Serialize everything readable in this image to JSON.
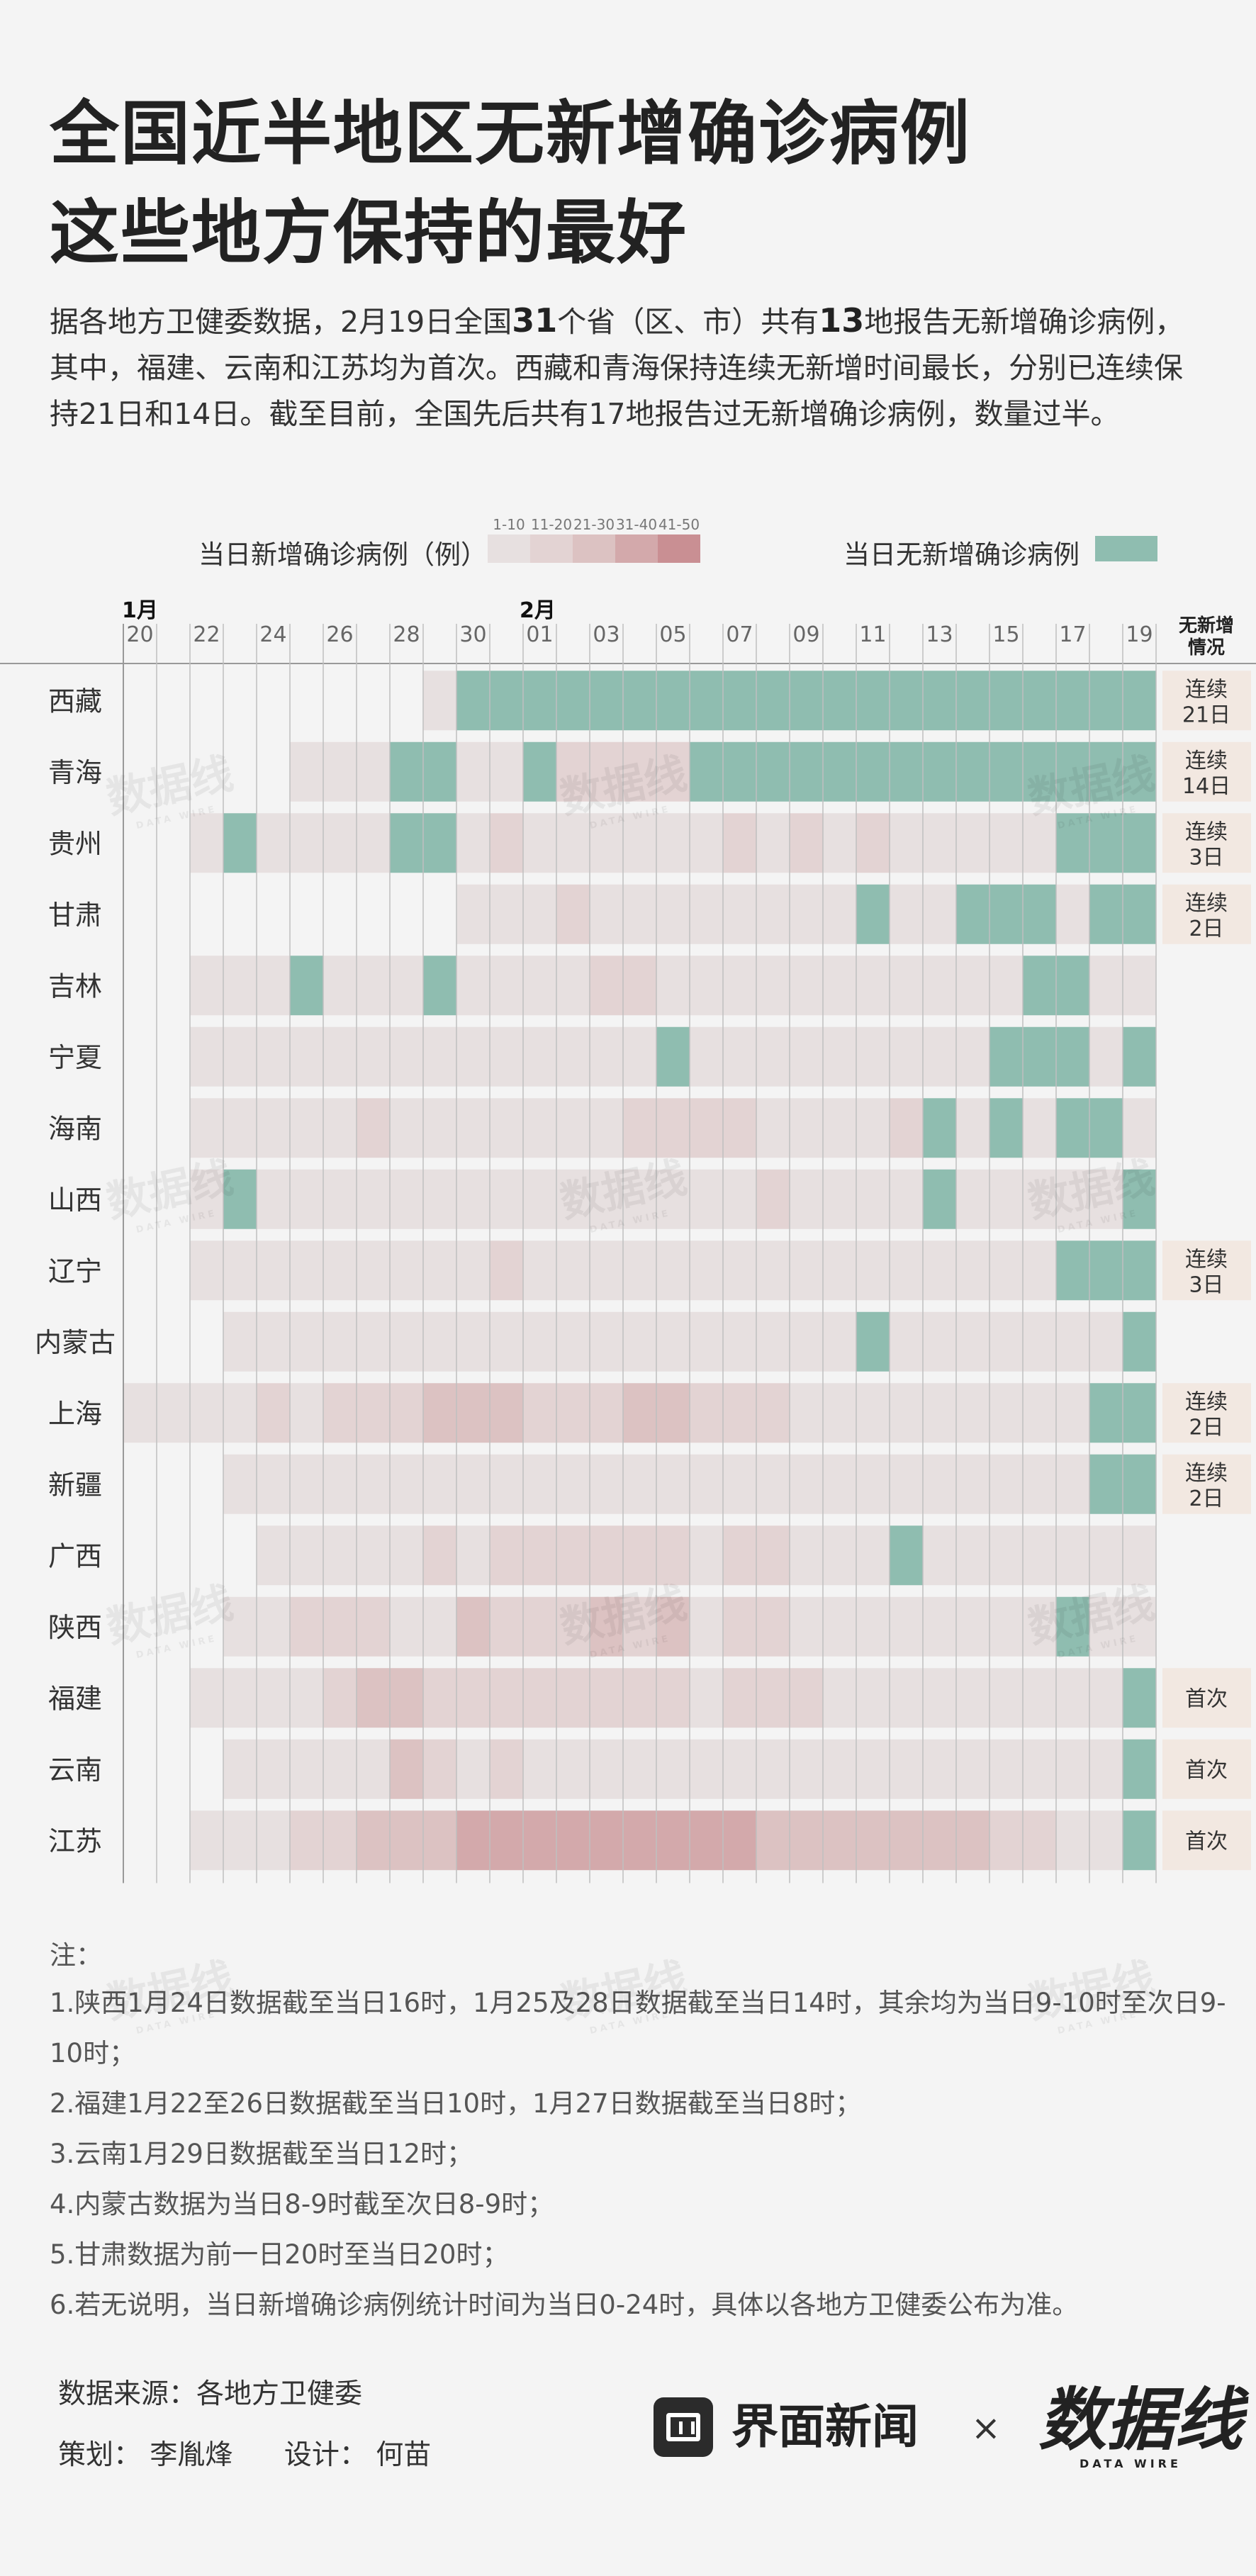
{
  "title_line1": "全国近半地区无新增确诊病例",
  "title_line2": "这些地方保持的最好",
  "intro": {
    "part1": "据各地方卫健委数据，2月19日全国",
    "num1": "31",
    "part2": "个省（区、市）共有",
    "num2": "13",
    "part3": "地报告无新增确诊病例，其中，福建、云南和江苏均为首次。西藏和青海保持连续无新增时间最长，分别已连续保持21日和14日。截至目前，全国先后共有17地报告过无新增确诊病例，数量过半。"
  },
  "legend": {
    "new_cases_label": "当日新增确诊病例（例）",
    "bins": [
      {
        "label": "1-10",
        "color": "#e7e0e0"
      },
      {
        "label": "11-20",
        "color": "#e3d3d3"
      },
      {
        "label": "21-30",
        "color": "#dcc2c2"
      },
      {
        "label": "31-40",
        "color": "#d3a9ab"
      },
      {
        "label": "41-50",
        "color": "#c98f93"
      }
    ],
    "no_new_label": "当日无新增确诊病例",
    "no_new_color": "#8fbdb0"
  },
  "chart_data": {
    "type": "heatmap",
    "month_labels": [
      "1月",
      "2月"
    ],
    "x_labels": [
      "20",
      "21",
      "22",
      "23",
      "24",
      "25",
      "26",
      "27",
      "28",
      "29",
      "30",
      "31",
      "01",
      "02",
      "03",
      "04",
      "05",
      "06",
      "07",
      "08",
      "09",
      "10",
      "11",
      "12",
      "13",
      "14",
      "15",
      "16",
      "17",
      "18",
      "19"
    ],
    "tick_labels_shown": [
      "20",
      "",
      "22",
      "",
      "24",
      "",
      "26",
      "",
      "28",
      "",
      "30",
      "",
      "01",
      "",
      "03",
      "",
      "05",
      "",
      "07",
      "",
      "09",
      "",
      "11",
      "",
      "13",
      "",
      "15",
      "",
      "17",
      "",
      "19"
    ],
    "status_header": [
      "无新增",
      "情况"
    ],
    "value_encoding": "0=无数据, 1=无新增确诊, 2=1-10, 3=11-20, 4=21-30, 5=31-40, 6=41-50",
    "rows": [
      {
        "province": "西藏",
        "status": [
          "连续",
          "21日"
        ],
        "values": [
          0,
          0,
          0,
          0,
          0,
          0,
          0,
          0,
          0,
          2,
          1,
          1,
          1,
          1,
          1,
          1,
          1,
          1,
          1,
          1,
          1,
          1,
          1,
          1,
          1,
          1,
          1,
          1,
          1,
          1,
          1
        ]
      },
      {
        "province": "青海",
        "status": [
          "连续",
          "14日"
        ],
        "values": [
          0,
          0,
          0,
          0,
          0,
          2,
          2,
          2,
          1,
          1,
          2,
          2,
          1,
          3,
          3,
          3,
          3,
          1,
          1,
          1,
          1,
          1,
          1,
          1,
          1,
          1,
          1,
          1,
          1,
          1,
          1
        ]
      },
      {
        "province": "贵州",
        "status": [
          "连续",
          "3日"
        ],
        "values": [
          0,
          0,
          2,
          1,
          2,
          2,
          2,
          2,
          1,
          1,
          2,
          3,
          2,
          2,
          2,
          2,
          2,
          2,
          3,
          2,
          3,
          2,
          3,
          2,
          2,
          2,
          2,
          2,
          1,
          1,
          1
        ]
      },
      {
        "province": "甘肃",
        "status": [
          "连续",
          "2日"
        ],
        "values": [
          0,
          0,
          0,
          0,
          0,
          0,
          0,
          0,
          0,
          0,
          2,
          2,
          2,
          3,
          2,
          2,
          2,
          2,
          2,
          2,
          2,
          2,
          1,
          2,
          2,
          1,
          1,
          1,
          2,
          1,
          1
        ]
      },
      {
        "province": "吉林",
        "status": [],
        "values": [
          0,
          0,
          2,
          2,
          2,
          1,
          2,
          2,
          2,
          1,
          2,
          2,
          2,
          2,
          3,
          3,
          2,
          2,
          2,
          2,
          2,
          2,
          2,
          2,
          2,
          2,
          2,
          1,
          1,
          2,
          2
        ]
      },
      {
        "province": "宁夏",
        "status": [],
        "values": [
          0,
          0,
          2,
          2,
          2,
          2,
          2,
          2,
          2,
          2,
          2,
          2,
          2,
          2,
          2,
          2,
          1,
          2,
          2,
          2,
          2,
          2,
          2,
          2,
          2,
          2,
          1,
          1,
          1,
          2,
          1
        ]
      },
      {
        "province": "海南",
        "status": [],
        "values": [
          0,
          0,
          2,
          2,
          2,
          2,
          2,
          3,
          2,
          2,
          2,
          2,
          2,
          2,
          2,
          3,
          3,
          3,
          3,
          2,
          2,
          2,
          2,
          3,
          1,
          2,
          1,
          2,
          1,
          1,
          2
        ]
      },
      {
        "province": "山西",
        "status": [],
        "values": [
          0,
          0,
          2,
          1,
          2,
          2,
          2,
          2,
          2,
          2,
          2,
          2,
          2,
          2,
          2,
          2,
          2,
          2,
          2,
          3,
          2,
          2,
          2,
          2,
          1,
          2,
          2,
          2,
          2,
          2,
          1
        ]
      },
      {
        "province": "辽宁",
        "status": [
          "连续",
          "3日"
        ],
        "values": [
          0,
          0,
          2,
          2,
          2,
          2,
          2,
          2,
          2,
          2,
          2,
          3,
          2,
          2,
          2,
          2,
          2,
          2,
          2,
          2,
          2,
          2,
          2,
          2,
          2,
          2,
          2,
          2,
          1,
          1,
          1
        ]
      },
      {
        "province": "内蒙古",
        "status": [],
        "values": [
          0,
          0,
          0,
          2,
          2,
          2,
          2,
          2,
          2,
          2,
          2,
          2,
          2,
          2,
          2,
          2,
          2,
          2,
          2,
          2,
          2,
          2,
          1,
          2,
          2,
          2,
          2,
          2,
          2,
          2,
          1
        ]
      },
      {
        "province": "上海",
        "status": [
          "连续",
          "2日"
        ],
        "values": [
          2,
          2,
          2,
          2,
          3,
          2,
          3,
          3,
          3,
          4,
          4,
          4,
          3,
          3,
          3,
          4,
          4,
          3,
          3,
          3,
          2,
          2,
          2,
          2,
          2,
          2,
          2,
          2,
          2,
          1,
          1
        ]
      },
      {
        "province": "新疆",
        "status": [
          "连续",
          "2日"
        ],
        "values": [
          0,
          0,
          0,
          2,
          2,
          2,
          2,
          2,
          2,
          2,
          2,
          2,
          2,
          2,
          2,
          2,
          2,
          2,
          2,
          2,
          2,
          2,
          2,
          2,
          2,
          2,
          2,
          2,
          2,
          1,
          1
        ]
      },
      {
        "province": "广西",
        "status": [],
        "values": [
          0,
          0,
          0,
          0,
          2,
          2,
          2,
          2,
          2,
          3,
          2,
          3,
          3,
          3,
          3,
          3,
          3,
          2,
          3,
          3,
          2,
          2,
          2,
          1,
          2,
          2,
          2,
          2,
          2,
          2,
          2
        ]
      },
      {
        "province": "陕西",
        "status": [],
        "values": [
          0,
          0,
          0,
          2,
          2,
          3,
          3,
          3,
          2,
          2,
          4,
          3,
          3,
          3,
          4,
          3,
          4,
          2,
          3,
          3,
          2,
          2,
          2,
          2,
          2,
          2,
          2,
          2,
          1,
          2,
          2
        ]
      },
      {
        "province": "福建",
        "status": [
          "首次"
        ],
        "values": [
          0,
          0,
          2,
          2,
          2,
          2,
          3,
          4,
          4,
          3,
          3,
          3,
          3,
          3,
          3,
          3,
          3,
          2,
          3,
          3,
          3,
          2,
          2,
          2,
          2,
          2,
          2,
          2,
          2,
          2,
          1
        ]
      },
      {
        "province": "云南",
        "status": [
          "首次"
        ],
        "values": [
          0,
          0,
          0,
          2,
          2,
          2,
          2,
          2,
          4,
          3,
          2,
          3,
          2,
          2,
          2,
          2,
          2,
          2,
          2,
          2,
          2,
          2,
          2,
          2,
          2,
          2,
          2,
          2,
          2,
          2,
          1
        ]
      },
      {
        "province": "江苏",
        "status": [
          "首次"
        ],
        "values": [
          0,
          0,
          2,
          2,
          2,
          3,
          3,
          4,
          4,
          4,
          5,
          5,
          5,
          5,
          5,
          5,
          5,
          5,
          5,
          4,
          4,
          4,
          4,
          4,
          4,
          4,
          3,
          3,
          2,
          2,
          1
        ]
      }
    ]
  },
  "colors": {
    "no_data": "#ffffff",
    "status_box": "#f2e8e1",
    "grid_line": "#bfbfbf",
    "axis_line": "#999999"
  },
  "notes": {
    "title": "注：",
    "items": [
      "1.陕西1月24日数据截至当日16时，1月25及28日数据截至当日14时，其余均为当日9-10时至次日9-10时；",
      "2.福建1月22至26日数据截至当日10时，1月27日数据截至当日8时；",
      "3.云南1月29日数据截至当日12时；",
      "4.内蒙古数据为当日8-9时截至次日8-9时；",
      "5.甘肃数据为前一日20时至当日20时；",
      "6.若无说明，当日新增确诊病例统计时间为当日0-24时，具体以各地方卫健委公布为准。"
    ]
  },
  "footer": {
    "source": "数据来源：各地方卫健委",
    "planner": "策划：  李胤烽",
    "designer": "设计：  何苗",
    "logo_left": "界面新闻",
    "times": "×",
    "logo_right": "数据线",
    "logo_right_sub": "DATA WIRE"
  }
}
